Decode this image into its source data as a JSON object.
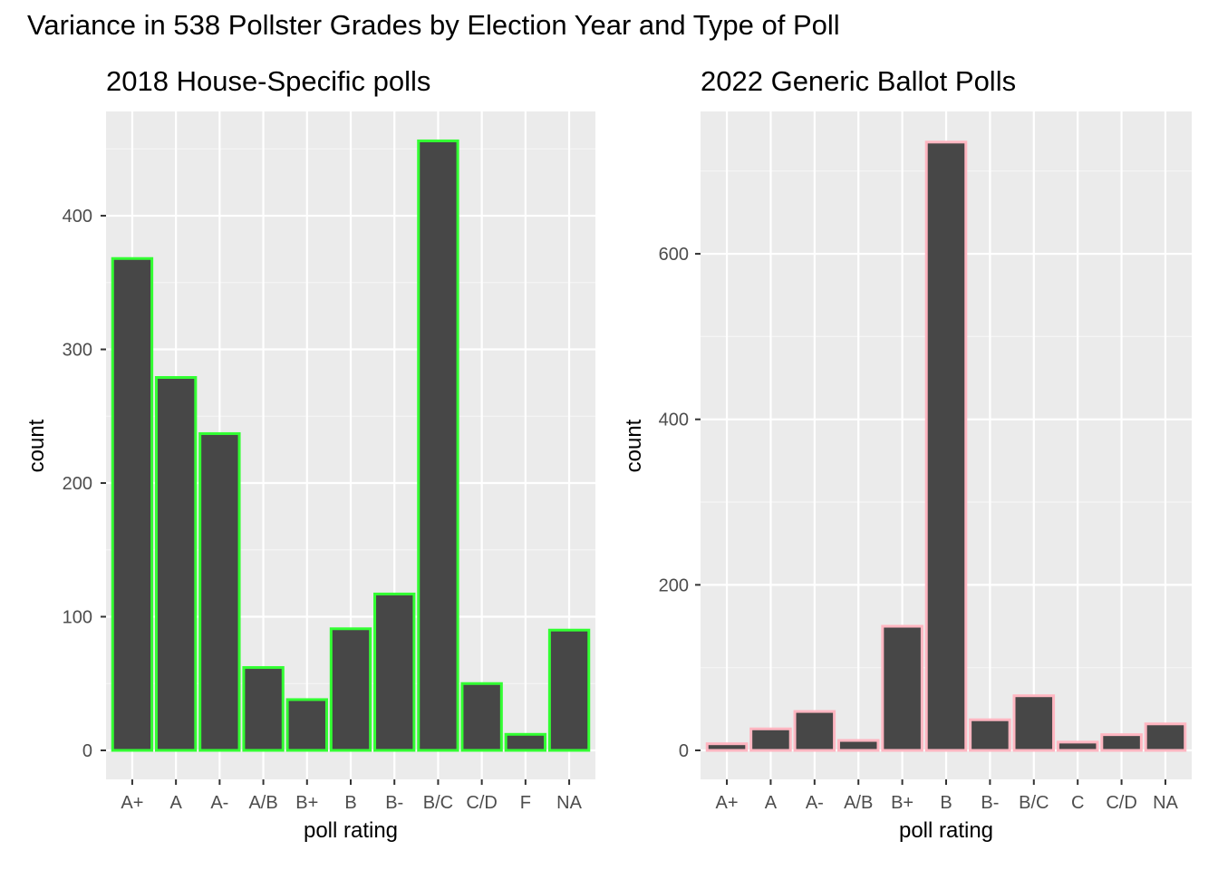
{
  "title": "Variance in 538 Pollster Grades by Election Year and Type of Poll",
  "chart_data": [
    {
      "type": "bar",
      "title": "2018 House-Specific polls",
      "xlabel": "poll rating",
      "ylabel": "count",
      "categories": [
        "A+",
        "A",
        "A-",
        "A/B",
        "B+",
        "B",
        "B-",
        "B/C",
        "C/D",
        "F",
        "NA"
      ],
      "values": [
        368,
        279,
        237,
        62,
        38,
        91,
        117,
        456,
        50,
        12,
        90
      ],
      "ylim": [
        0,
        478
      ],
      "yticks": [
        0,
        100,
        200,
        300,
        400
      ],
      "bar_fill": "#474747",
      "bar_outline": "#33ff33",
      "panel_background": "#ebebeb",
      "grid": true,
      "legend": "none"
    },
    {
      "type": "bar",
      "title": "2022 Generic Ballot Polls",
      "xlabel": "poll rating",
      "ylabel": "count",
      "categories": [
        "A+",
        "A",
        "A-",
        "A/B",
        "B+",
        "B",
        "B-",
        "B/C",
        "C",
        "C/D",
        "NA"
      ],
      "values": [
        8,
        26,
        47,
        12,
        150,
        735,
        37,
        66,
        10,
        19,
        32
      ],
      "ylim": [
        0,
        772
      ],
      "yticks": [
        0,
        200,
        400,
        600
      ],
      "bar_fill": "#474747",
      "bar_outline": "#ffb6c1",
      "panel_background": "#ebebeb",
      "grid": true,
      "legend": "none"
    }
  ]
}
